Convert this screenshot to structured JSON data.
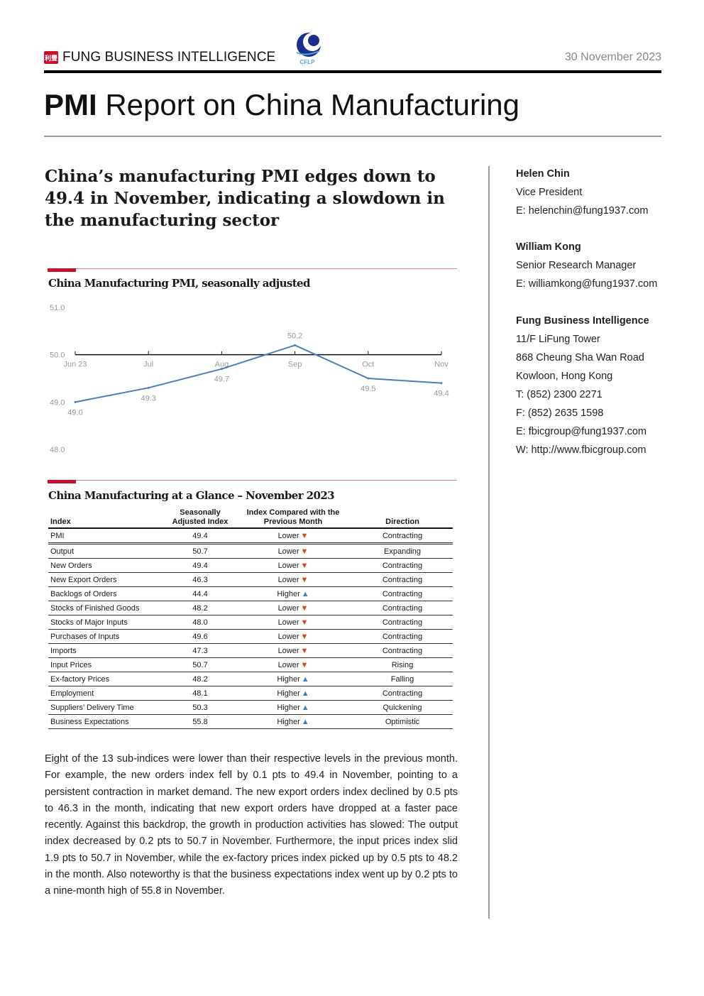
{
  "header": {
    "brand": "FUNG BUSINESS INTELLIGENCE",
    "brand_mark": "利豐",
    "partner_logo": "CFLP",
    "date": "30 November 2023"
  },
  "title": {
    "bold": "PMI",
    "rest": " Report on China Manufacturing"
  },
  "headline": "China’s manufacturing PMI edges down to 49.4 in November, indicating a slowdown in the manufacturing sector",
  "chart_section_title": "China Manufacturing PMI, seasonally adjusted",
  "chart_data": {
    "type": "line",
    "title": "China Manufacturing PMI, seasonally adjusted",
    "categories": [
      "Jun 23",
      "Jul",
      "Aug",
      "Sep",
      "Oct",
      "Nov"
    ],
    "values": [
      49.0,
      49.3,
      49.7,
      50.2,
      49.5,
      49.4
    ],
    "value_labels": [
      "49.0",
      "49.3",
      "49.7",
      "50.2",
      "49.5",
      "49.4"
    ],
    "ylim": [
      48.0,
      51.0
    ],
    "yticks": [
      "51.0",
      "50.0",
      "49.0",
      "48.0"
    ],
    "baseline": 50.0,
    "line_color": "#4a7ebb",
    "grid": false
  },
  "table_section_title": "China Manufacturing at a Glance – November 2023",
  "table": {
    "headers": [
      "Index",
      "Seasonally Adjusted Index",
      "Index Compared with the Previous Month",
      "Direction"
    ],
    "rows": [
      [
        "PMI",
        "49.4",
        "Lower",
        "Contracting"
      ],
      [
        "Output",
        "50.7",
        "Lower",
        "Expanding"
      ],
      [
        "New Orders",
        "49.4",
        "Lower",
        "Contracting"
      ],
      [
        "New Export Orders",
        "46.3",
        "Lower",
        "Contracting"
      ],
      [
        "Backlogs of Orders",
        "44.4",
        "Higher",
        "Contracting"
      ],
      [
        "Stocks of Finished Goods",
        "48.2",
        "Lower",
        "Contracting"
      ],
      [
        "Stocks of Major Inputs",
        "48.0",
        "Lower",
        "Contracting"
      ],
      [
        "Purchases of Inputs",
        "49.6",
        "Lower",
        "Contracting"
      ],
      [
        "Imports",
        "47.3",
        "Lower",
        "Contracting"
      ],
      [
        "Input Prices",
        "50.7",
        "Lower",
        "Rising"
      ],
      [
        "Ex-factory Prices",
        "48.2",
        "Higher",
        "Falling"
      ],
      [
        "Employment",
        "48.1",
        "Higher",
        "Contracting"
      ],
      [
        "Suppliers’ Delivery Time",
        "50.3",
        "Higher",
        "Quickening"
      ],
      [
        "Business Expectations",
        "55.8",
        "Higher",
        "Optimistic"
      ]
    ],
    "arrow_down": "▼",
    "arrow_up": "▲"
  },
  "paragraph": "Eight of the 13 sub-indices were lower than their respective levels in the previous month. For example, the new orders index fell by 0.1 pts to 49.4 in November, pointing to a persistent contraction in market demand. The new export orders index declined by 0.5 pts to 46.3 in the month, indicating that new export orders have dropped at a faster pace recently. Against this backdrop, the growth in production activities has slowed: The output index decreased by 0.2 pts to 50.7 in November. Furthermore, the input prices index slid 1.9 pts to 50.7 in November, while the ex-factory prices index picked up by 0.5 pts to 48.2 in the month. Also noteworthy is that the business expectations index went up by 0.2 pts to a nine-month high of 55.8 in November.",
  "sidebar": {
    "contact1": {
      "name": "Helen Chin",
      "role": "Vice President",
      "email": "E: helenchin@fung1937.com"
    },
    "contact2": {
      "name": "William Kong",
      "role": "Senior Research Manager",
      "email": "E: williamkong@fung1937.com"
    },
    "org": {
      "name": "Fung Business Intelligence",
      "lines": [
        "11/F LiFung Tower",
        "868 Cheung Sha Wan Road",
        "Kowloon, Hong Kong",
        "T: (852) 2300 2271",
        "F: (852) 2635 1598",
        "E: fbicgroup@fung1937.com",
        "W: http://www.fbicgroup.com"
      ]
    }
  }
}
